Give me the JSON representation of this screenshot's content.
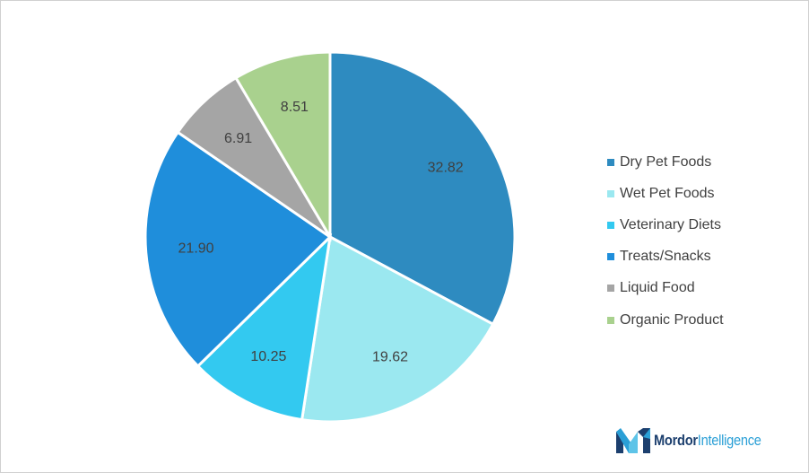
{
  "chart_data": {
    "type": "pie",
    "categories": [
      "Dry Pet Foods",
      "Wet Pet Foods",
      "Veterinary Diets",
      "Treats/Snacks",
      "Liquid Food",
      "Organic Product"
    ],
    "values": [
      32.82,
      19.62,
      10.25,
      21.9,
      6.91,
      8.51
    ],
    "value_labels": [
      "32.82",
      "19.62",
      "10.25",
      "21.90",
      "6.91",
      "8.51"
    ],
    "colors": [
      "#2e8bc0",
      "#9be8f0",
      "#33c9f0",
      "#1f8edb",
      "#a5a5a5",
      "#a9d18e"
    ],
    "start_angle_deg": 0,
    "direction": "clockwise",
    "legend_position": "right",
    "title": ""
  },
  "brand": {
    "name_part1": "Mordor",
    "name_part2": "Intelligence"
  }
}
